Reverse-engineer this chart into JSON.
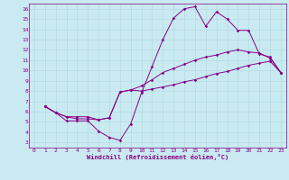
{
  "xlabel": "Windchill (Refroidissement éolien,°C)",
  "background_color": "#c8eaf0",
  "grid_color": "#b0d8e0",
  "line_color": "#880088",
  "xlim": [
    -0.5,
    23.5
  ],
  "ylim": [
    2.5,
    16.5
  ],
  "xticks": [
    0,
    1,
    2,
    3,
    4,
    5,
    6,
    7,
    8,
    9,
    10,
    11,
    12,
    13,
    14,
    15,
    16,
    17,
    18,
    19,
    20,
    21,
    22,
    23
  ],
  "yticks": [
    3,
    4,
    5,
    6,
    7,
    8,
    9,
    10,
    11,
    12,
    13,
    14,
    15,
    16
  ],
  "line1_x": [
    1,
    2,
    3,
    4,
    5,
    6,
    7,
    8,
    9,
    10,
    11,
    12,
    13,
    14,
    15,
    16,
    17,
    18,
    19,
    20,
    21,
    22,
    23
  ],
  "line1_y": [
    6.5,
    5.9,
    5.1,
    5.1,
    5.1,
    4.1,
    3.5,
    3.2,
    4.8,
    7.8,
    10.4,
    13.0,
    15.1,
    16.0,
    16.2,
    14.3,
    15.7,
    15.0,
    13.9,
    13.9,
    11.6,
    11.3,
    9.8
  ],
  "line2_x": [
    1,
    2,
    3,
    4,
    5,
    6,
    7,
    8,
    9,
    10,
    11,
    12,
    13,
    14,
    15,
    16,
    17,
    18,
    19,
    20,
    21,
    22,
    23
  ],
  "line2_y": [
    6.5,
    5.9,
    5.5,
    5.5,
    5.5,
    5.2,
    5.4,
    7.9,
    8.1,
    8.5,
    9.1,
    9.8,
    10.2,
    10.6,
    11.0,
    11.3,
    11.5,
    11.8,
    12.0,
    11.8,
    11.7,
    11.2,
    9.8
  ],
  "line3_x": [
    1,
    2,
    3,
    4,
    5,
    6,
    7,
    8,
    9,
    10,
    11,
    12,
    13,
    14,
    15,
    16,
    17,
    18,
    19,
    20,
    21,
    22,
    23
  ],
  "line3_y": [
    6.5,
    5.9,
    5.5,
    5.3,
    5.3,
    5.2,
    5.4,
    7.9,
    8.1,
    8.0,
    8.2,
    8.4,
    8.6,
    8.9,
    9.1,
    9.4,
    9.7,
    9.9,
    10.2,
    10.5,
    10.7,
    10.9,
    9.8
  ],
  "marker_size": 1.8,
  "line_width": 0.7,
  "tick_fontsize": 4.5,
  "xlabel_fontsize": 5.0
}
